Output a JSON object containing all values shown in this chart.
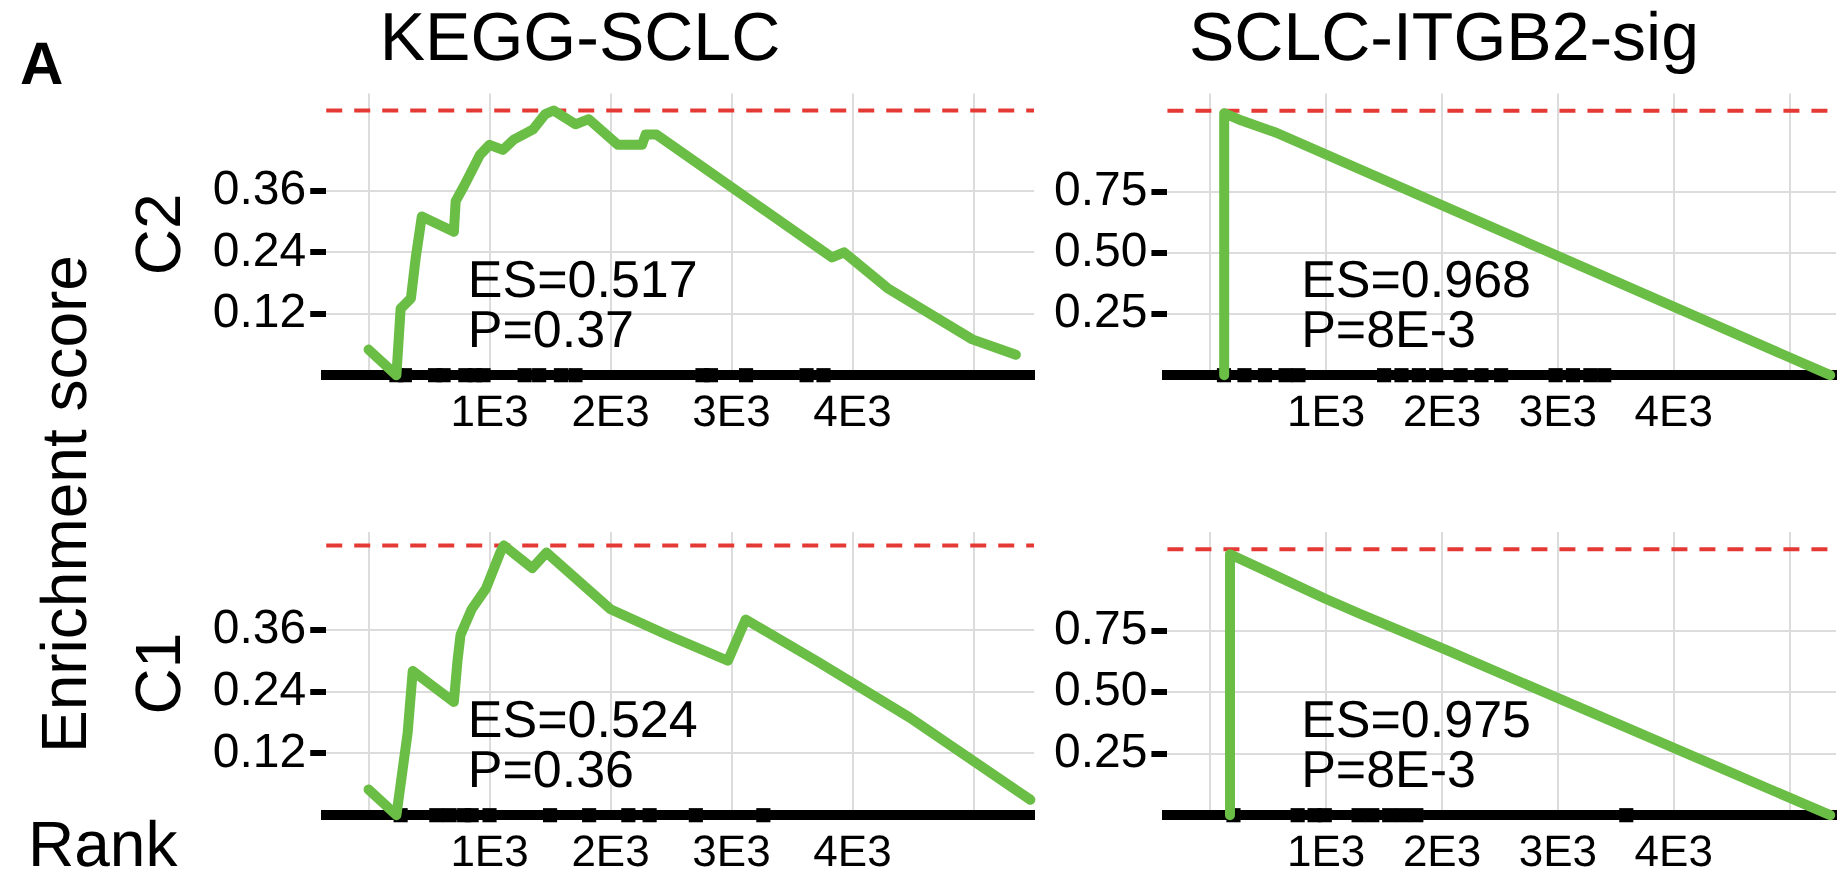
{
  "chart_data": [
    {
      "type": "line",
      "title": "KEGG-SCLC",
      "ylabel": "C2",
      "annotations": [
        "ES=0.517",
        "P=0.37"
      ],
      "grid": true,
      "xlim": [
        -350,
        5500
      ],
      "xticks": [
        {
          "value": 0,
          "label": null
        },
        {
          "value": 1000,
          "label": "1E3"
        },
        {
          "value": 2000,
          "label": "2E3"
        },
        {
          "value": 3000,
          "label": "3E3"
        },
        {
          "value": 4000,
          "label": "4E3"
        },
        {
          "value": 5000,
          "label": null
        }
      ],
      "ylim": [
        0,
        0.55
      ],
      "yticks": [
        0.12,
        0.24,
        0.36
      ],
      "ref_lines": [
        {
          "axis": "y",
          "value": 0.517,
          "color": "#e53935",
          "line_style": "dashed"
        }
      ],
      "series": [
        {
          "type": "line",
          "color": "#6abd45",
          "marker": "none",
          "x": [
            0,
            230,
            265,
            350,
            390,
            440,
            705,
            720,
            790,
            920,
            1000,
            1110,
            1200,
            1360,
            1460,
            1530,
            1710,
            1820,
            2060,
            2260,
            2290,
            2380,
            3830,
            3930,
            4290,
            4990,
            5350
          ],
          "values": [
            0.05,
            0,
            0.13,
            0.15,
            0.23,
            0.31,
            0.28,
            0.34,
            0.37,
            0.43,
            0.45,
            0.44,
            0.46,
            0.48,
            0.51,
            0.517,
            0.49,
            0.5,
            0.45,
            0.45,
            0.47,
            0.47,
            0.23,
            0.24,
            0.17,
            0.07,
            0.04
          ]
        },
        {
          "type": "scatter",
          "color": "#000000",
          "marker": "square",
          "x": [
            230,
            300,
            550,
            620,
            800,
            880,
            950,
            1290,
            1410,
            1590,
            1710,
            2760,
            2830,
            3120,
            3620,
            3760
          ],
          "values": [
            0,
            0,
            0,
            0,
            0,
            0,
            0,
            0,
            0,
            0,
            0,
            0,
            0,
            0,
            0,
            0
          ]
        }
      ]
    },
    {
      "type": "line",
      "title": "SCLC-ITGB2-sig",
      "annotations": [
        "ES=0.968",
        "P=8E-3"
      ],
      "grid": true,
      "xlim": [
        -370,
        5400
      ],
      "xticks": [
        {
          "value": 0,
          "label": null
        },
        {
          "value": 1000,
          "label": "1E3"
        },
        {
          "value": 2000,
          "label": "2E3"
        },
        {
          "value": 3000,
          "label": "3E3"
        },
        {
          "value": 4000,
          "label": "4E3"
        },
        {
          "value": 5000,
          "label": null
        }
      ],
      "ylim": [
        0,
        1.15
      ],
      "yticks": [
        0.25,
        {
          "value": 0.5,
          "label": "0.50"
        },
        0.75
      ],
      "ref_lines": [
        {
          "axis": "y",
          "value": 1.08,
          "color": "#e53935",
          "line_style": "dashed"
        }
      ],
      "series": [
        {
          "type": "line",
          "color": "#6abd45",
          "marker": "none",
          "x": [
            120,
            120,
            270,
            570,
            5350
          ],
          "values": [
            0,
            1.07,
            1.04,
            0.99,
            0
          ]
        },
        {
          "type": "scatter",
          "color": "#000000",
          "marker": "square",
          "x": [
            118,
            295,
            472,
            650,
            761,
            1500,
            1650,
            1800,
            1950,
            2160,
            2340,
            2510,
            2980,
            3130,
            3280,
            3400
          ],
          "values": [
            0,
            0,
            0,
            0,
            0,
            0,
            0,
            0,
            0,
            0,
            0,
            0,
            0,
            0,
            0,
            0
          ]
        }
      ]
    },
    {
      "type": "line",
      "ylabel": "C1",
      "annotations": [
        "ES=0.524",
        "P=0.36"
      ],
      "grid": true,
      "xlim": [
        -350,
        5500
      ],
      "xticks": [
        {
          "value": 0,
          "label": null
        },
        {
          "value": 1000,
          "label": "1E3"
        },
        {
          "value": 2000,
          "label": "2E3"
        },
        {
          "value": 3000,
          "label": "3E3"
        },
        {
          "value": 4000,
          "label": "4E3"
        },
        {
          "value": 5000,
          "label": null
        }
      ],
      "ylim": [
        0,
        0.55
      ],
      "yticks": [
        0.12,
        0.24,
        0.36
      ],
      "ref_lines": [
        {
          "axis": "y",
          "value": 0.524,
          "color": "#e53935",
          "line_style": "dashed"
        }
      ],
      "series": [
        {
          "type": "line",
          "color": "#6abd45",
          "marker": "none",
          "x": [
            0,
            230,
            323,
            365,
            705,
            735,
            760,
            852,
            970,
            1088,
            1117,
            1353,
            1470,
            2000,
            2470,
            2970,
            3117,
            3700,
            4470,
            5470
          ],
          "values": [
            0.05,
            0,
            0.16,
            0.28,
            0.22,
            0.3,
            0.35,
            0.4,
            0.44,
            0.51,
            0.524,
            0.48,
            0.51,
            0.4,
            0.35,
            0.3,
            0.38,
            0.3,
            0.19,
            0.03
          ]
        },
        {
          "type": "scatter",
          "color": "#000000",
          "marker": "square",
          "x": [
            265,
            560,
            670,
            790,
            852,
            1000,
            1500,
            1823,
            2147,
            2323,
            2705,
            3263
          ],
          "values": [
            0,
            0,
            0,
            0,
            0,
            0,
            0,
            0,
            0,
            0,
            0,
            0
          ]
        }
      ]
    },
    {
      "type": "line",
      "annotations": [
        "ES=0.975",
        "P=8E-3"
      ],
      "grid": true,
      "xlim": [
        -370,
        5400
      ],
      "xticks": [
        {
          "value": 0,
          "label": null
        },
        {
          "value": 1000,
          "label": "1E3"
        },
        {
          "value": 2000,
          "label": "2E3"
        },
        {
          "value": 3000,
          "label": "3E3"
        },
        {
          "value": 4000,
          "label": "4E3"
        },
        {
          "value": 5000,
          "label": null
        }
      ],
      "ylim": [
        0,
        1.15
      ],
      "yticks": [
        0.25,
        {
          "value": 0.5,
          "label": "0.50"
        },
        0.75
      ],
      "ref_lines": [
        {
          "axis": "y",
          "value": 1.08,
          "color": "#e53935",
          "line_style": "dashed"
        }
      ],
      "series": [
        {
          "type": "line",
          "color": "#6abd45",
          "marker": "none",
          "x": [
            170,
            170,
            988,
            1280,
            2040,
            5350
          ],
          "values": [
            0,
            1.06,
            0.88,
            0.82,
            0.67,
            0
          ]
        },
        {
          "type": "scatter",
          "color": "#000000",
          "marker": "square",
          "x": [
            200,
            754,
            900,
            988,
            1280,
            1398,
            1544,
            1661,
            1778,
            3590
          ],
          "values": [
            0,
            0,
            0,
            0,
            0,
            0,
            0,
            0,
            0,
            0
          ]
        }
      ]
    },
    {
      "type": "other",
      "annotations": [
        "A",
        "Enrichment score",
        "Rank"
      ]
    }
  ]
}
